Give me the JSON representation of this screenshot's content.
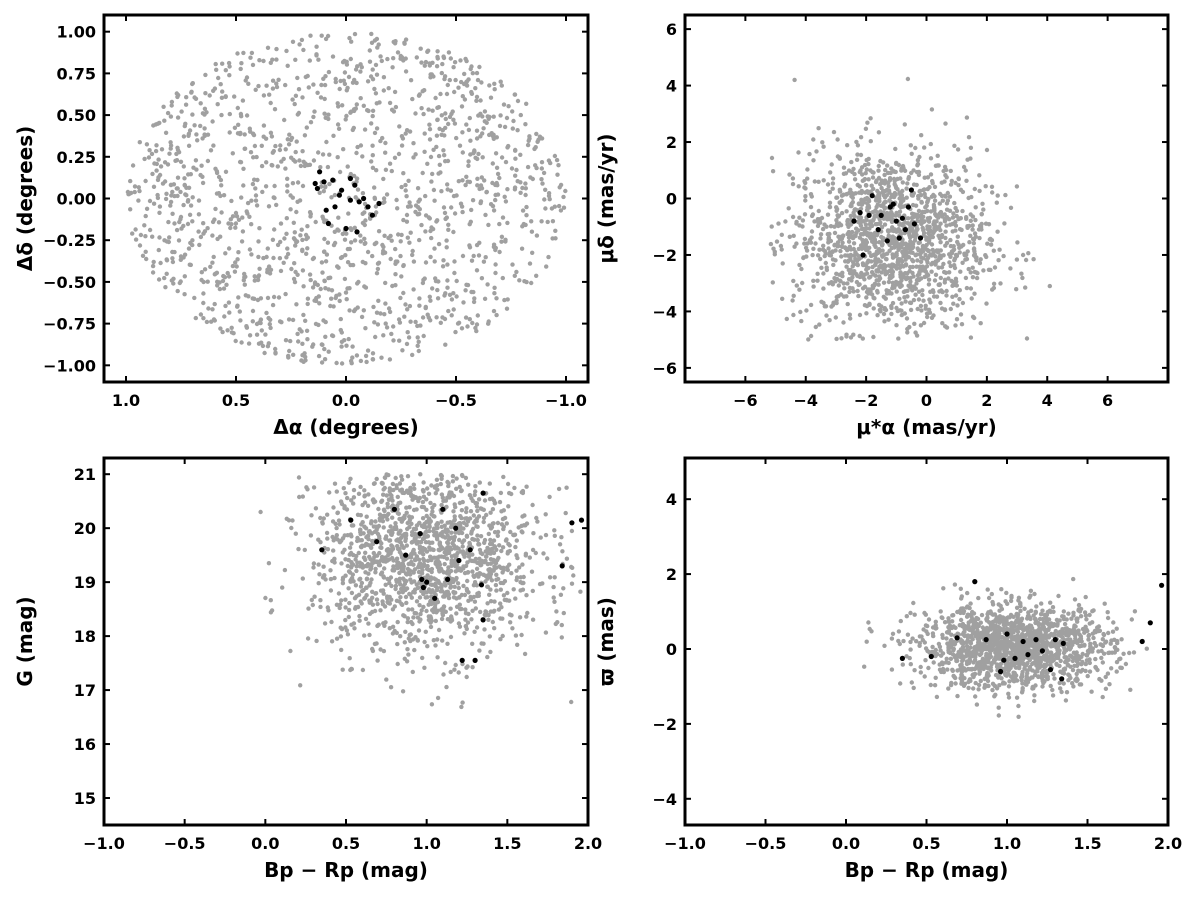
{
  "chart_data": [
    {
      "type": "scatter",
      "xlabel": "Δα (degrees)",
      "ylabel": "Δδ (degrees)",
      "xlim": [
        1.1,
        -1.1
      ],
      "ylim": [
        -1.1,
        1.1
      ],
      "xticks": [
        1.0,
        0.5,
        0.0,
        -0.5,
        -1.0
      ],
      "xtick_labels": [
        "1.0",
        "0.5",
        "0.0",
        "−0.5",
        "−1.0"
      ],
      "yticks": [
        1.0,
        0.75,
        0.5,
        0.25,
        0.0,
        -0.25,
        -0.5,
        -0.75,
        -1.0
      ],
      "ytick_labels": [
        "1.00",
        "0.75",
        "0.50",
        "0.25",
        "0.00",
        "−0.25",
        "−0.50",
        "−0.75",
        "−1.00"
      ],
      "grid": false,
      "series_style": [
        {
          "color": "#a0a0a0"
        },
        {
          "color": "#000000"
        }
      ],
      "background": {
        "shape": "disk",
        "center": [
          0,
          0
        ],
        "radius": 1.0,
        "count": 1500
      },
      "members": {
        "x": [
          -0.02,
          0.02,
          -0.04,
          -0.06,
          0.05,
          0.1,
          -0.08,
          0.12,
          0.0,
          -0.12,
          0.08,
          -0.1,
          0.14,
          -0.05,
          0.03,
          -0.02,
          0.06,
          0.13,
          -0.15,
          0.09
        ],
        "y": [
          0.12,
          0.05,
          0.08,
          -0.02,
          -0.05,
          0.1,
          0.0,
          0.16,
          -0.18,
          -0.1,
          -0.15,
          -0.05,
          0.09,
          -0.2,
          0.02,
          -0.01,
          0.11,
          0.06,
          -0.03,
          -0.07
        ]
      }
    },
    {
      "type": "scatter",
      "xlabel": "μ*α (mas/yr)",
      "ylabel": "μδ (mas/yr)",
      "xlim": [
        -8,
        8
      ],
      "ylim": [
        -6.5,
        6.5
      ],
      "xticks": [
        -6,
        -4,
        -2,
        0,
        2,
        4,
        6
      ],
      "xtick_labels": [
        "−6",
        "−4",
        "−2",
        "0",
        "2",
        "4",
        "6"
      ],
      "yticks": [
        6,
        4,
        2,
        0,
        -2,
        -4,
        -6
      ],
      "ytick_labels": [
        "6",
        "4",
        "2",
        "0",
        "−2",
        "−4",
        "−6"
      ],
      "grid": false,
      "series_style": [
        {
          "color": "#a0a0a0"
        },
        {
          "color": "#000000"
        }
      ],
      "background": {
        "center": [
          -1.2,
          -1.5
        ],
        "spread": [
          1.6,
          1.6
        ],
        "xrange": [
          -5.2,
          4.8
        ],
        "yrange": [
          -5,
          5
        ],
        "count": 1500
      },
      "members": {
        "x": [
          -1.8,
          -1.5,
          -1.2,
          -1.0,
          -0.8,
          -0.6,
          -0.5,
          -1.9,
          -2.2,
          -2.4,
          -1.6,
          -1.3,
          -0.9,
          -0.2,
          -2.1,
          -0.7,
          -1.1,
          -0.4
        ],
        "y": [
          0.1,
          -0.6,
          -0.3,
          -0.8,
          -0.7,
          -0.3,
          0.3,
          -0.6,
          -0.5,
          -0.8,
          -1.1,
          -1.5,
          -1.4,
          -1.4,
          -2.0,
          -1.1,
          -0.2,
          -0.9
        ]
      }
    },
    {
      "type": "scatter",
      "xlabel": "Bp − Rp (mag)",
      "ylabel": "G (mag)",
      "xlim": [
        -1.0,
        2.0
      ],
      "ylim": [
        14.5,
        21.3
      ],
      "xticks": [
        -1.0,
        -0.5,
        0.0,
        0.5,
        1.0,
        1.5,
        2.0
      ],
      "xtick_labels": [
        "−1.0",
        "−0.5",
        "0.0",
        "0.5",
        "1.0",
        "1.5",
        "2.0"
      ],
      "yticks": [
        21,
        20,
        19,
        18,
        17,
        16,
        15
      ],
      "ytick_labels": [
        "21",
        "20",
        "19",
        "18",
        "17",
        "16",
        "15"
      ],
      "grid": false,
      "series_style": [
        {
          "color": "#a0a0a0"
        },
        {
          "color": "#000000"
        }
      ],
      "background": {
        "center": [
          1.0,
          19.5
        ],
        "spread": [
          0.35,
          0.9
        ],
        "xrange": [
          -0.4,
          2.0
        ],
        "yrange": [
          14.8,
          21.0
        ],
        "count": 1500
      },
      "members": {
        "x": [
          0.35,
          0.53,
          0.69,
          0.8,
          0.87,
          0.96,
          0.97,
          0.98,
          1.0,
          1.05,
          1.1,
          1.13,
          1.18,
          1.2,
          1.22,
          1.27,
          1.3,
          1.34,
          1.35,
          1.35,
          1.84,
          1.9,
          1.96
        ],
        "y": [
          19.6,
          20.15,
          19.75,
          20.35,
          19.5,
          19.9,
          19.05,
          18.9,
          19.0,
          18.7,
          20.35,
          19.05,
          20.0,
          19.4,
          17.55,
          19.6,
          17.55,
          18.95,
          18.3,
          20.65,
          19.3,
          20.1,
          20.15
        ]
      }
    },
    {
      "type": "scatter",
      "xlabel": "Bp − Rp (mag)",
      "ylabel": "ϖ (mas)",
      "xlim": [
        -1.0,
        2.0
      ],
      "ylim": [
        -4.7,
        5.1
      ],
      "xticks": [
        -1.0,
        -0.5,
        0.0,
        0.5,
        1.0,
        1.5,
        2.0
      ],
      "xtick_labels": [
        "−1.0",
        "−0.5",
        "0.0",
        "0.5",
        "1.0",
        "1.5",
        "2.0"
      ],
      "yticks": [
        4,
        2,
        0,
        -2,
        -4
      ],
      "ytick_labels": [
        "4",
        "2",
        "0",
        "−2",
        "−4"
      ],
      "grid": false,
      "series_style": [
        {
          "color": "#a0a0a0"
        },
        {
          "color": "#000000"
        }
      ],
      "background": {
        "center": [
          1.05,
          0.05
        ],
        "spread": [
          0.3,
          0.55
        ],
        "xrange": [
          -0.35,
          2.0
        ],
        "yrange": [
          -4.4,
          4.7
        ],
        "count": 1500
      },
      "members": {
        "x": [
          0.35,
          0.53,
          0.69,
          0.8,
          0.87,
          0.96,
          0.98,
          1.0,
          1.05,
          1.1,
          1.13,
          1.18,
          1.22,
          1.27,
          1.3,
          1.34,
          1.35,
          1.84,
          1.89,
          1.96
        ],
        "y": [
          -0.25,
          -0.2,
          0.3,
          1.8,
          0.25,
          -0.6,
          -0.3,
          0.4,
          -0.25,
          0.2,
          -0.15,
          0.25,
          -0.05,
          -0.55,
          0.25,
          -0.8,
          0.15,
          0.2,
          0.7,
          1.7
        ]
      }
    }
  ]
}
